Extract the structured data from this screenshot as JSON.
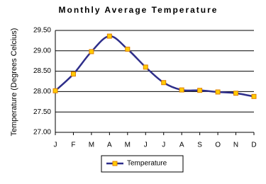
{
  "chart_data": {
    "type": "line",
    "title": "Monthly Average Temperature",
    "y_label": "Temperature (Degrees Celcius)",
    "categories": [
      "J",
      "F",
      "M",
      "A",
      "M",
      "J",
      "J",
      "A",
      "S",
      "O",
      "N",
      "D"
    ],
    "series": [
      {
        "name": "Temperature",
        "color": "#2e2e8a",
        "marker_color": "#ffcc00",
        "values": [
          28.02,
          28.43,
          28.98,
          29.36,
          29.04,
          28.6,
          28.22,
          28.04,
          28.03,
          27.99,
          27.96,
          27.88
        ]
      }
    ],
    "ylim": [
      27,
      29.5
    ],
    "yticks": [
      {
        "value": 27,
        "label": "27.00"
      },
      {
        "value": 27.5,
        "label": "27.50"
      },
      {
        "value": 28,
        "label": "28.00"
      },
      {
        "value": 28.5,
        "label": "28.50"
      },
      {
        "value": 29,
        "label": "29.00"
      },
      {
        "value": 29.5,
        "label": "29.50"
      }
    ],
    "grid": true,
    "legend": "bottom"
  }
}
